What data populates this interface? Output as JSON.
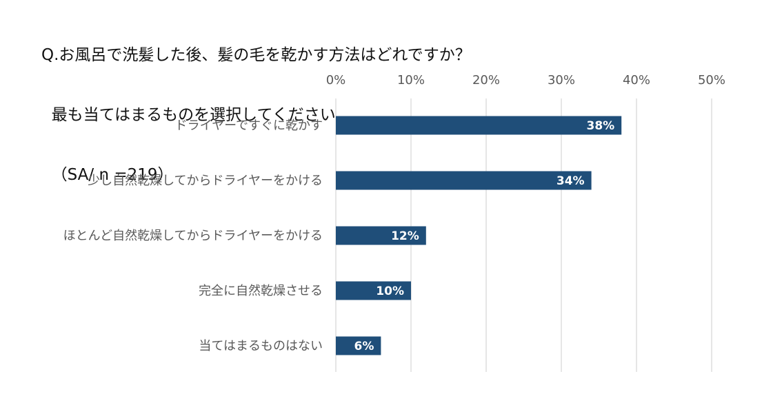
{
  "chart_data": {
    "type": "bar",
    "orientation": "horizontal",
    "title": [
      "Q.お風呂で洗髪した後、髪の毛を乾かす方法はどれですか？",
      "  最も当てはまるものを選択してください。",
      "  （SA/ n =219）"
    ],
    "categories": [
      "ドライヤーですぐに乾かす",
      "少し自然乾燥してからドライヤーをかける",
      "ほとんど自然乾燥してからドライヤーをかける",
      "完全に自然乾燥させる",
      "当てはまるものはない"
    ],
    "values": [
      38,
      34,
      12,
      10,
      6
    ],
    "data_labels": [
      "38%",
      "34%",
      "12%",
      "10%",
      "6%"
    ],
    "xlim": [
      0,
      50
    ],
    "xticks": [
      0,
      10,
      20,
      30,
      40,
      50
    ],
    "xtick_labels": [
      "0%",
      "10%",
      "20%",
      "30%",
      "40%",
      "50%"
    ],
    "x_axis_position": "top",
    "grid": true,
    "bar_color": "#1f4e79",
    "grid_color": "#d9d9d9"
  }
}
